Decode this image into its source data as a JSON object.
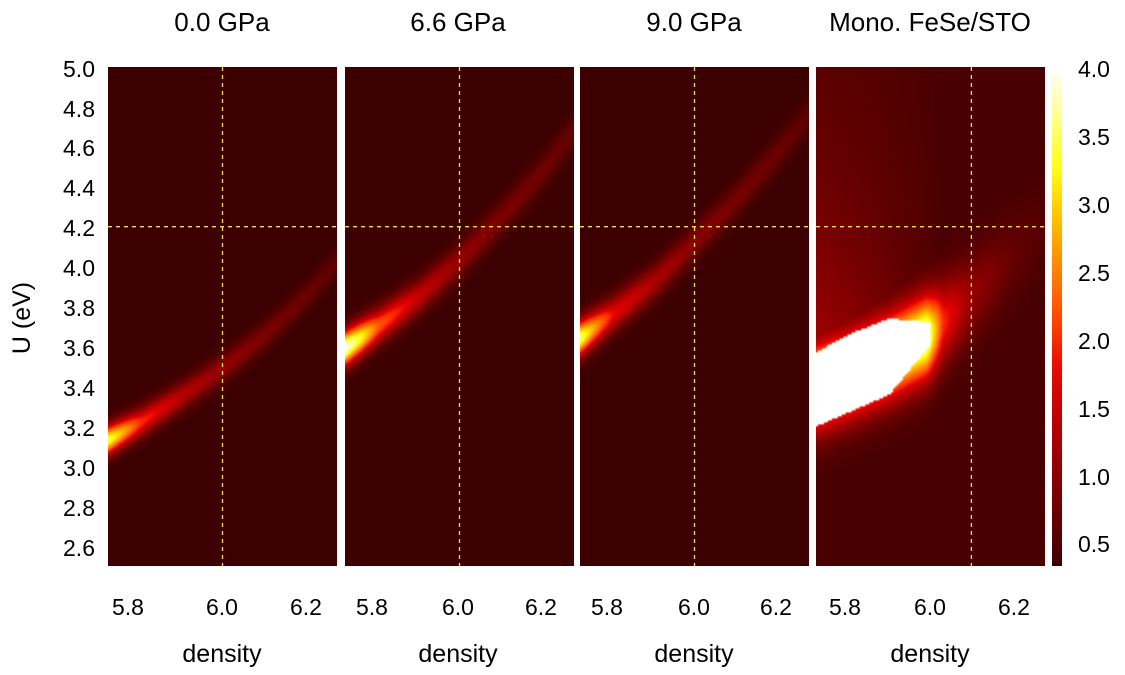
{
  "chart_data": {
    "type": "heatmap",
    "colormap": "black-red-yellow-white (gnuplot hot)",
    "ylabel": "U (eV)",
    "ylim": [
      2.5,
      5.0
    ],
    "yticks": [
      "5.0",
      "4.8",
      "4.6",
      "4.4",
      "4.2",
      "4.0",
      "3.8",
      "3.6",
      "3.4",
      "3.2",
      "3.0",
      "2.8",
      "2.6"
    ],
    "colorbar": {
      "range": [
        0.35,
        4.0
      ],
      "ticks": [
        "4.0",
        "3.5",
        "3.0",
        "2.5",
        "2.0",
        "1.5",
        "1.0",
        "0.5"
      ]
    },
    "reference_lines": {
      "u": 4.2,
      "color": "#f2e04a",
      "style": "dashed"
    },
    "panels": [
      {
        "title": "0.0 GPa",
        "xlabel": "density",
        "xlim": [
          5.72,
          6.28
        ],
        "xticks": [
          "5.8",
          "6.0",
          "6.2"
        ],
        "reference_density": 6.0,
        "ridge": [
          [
            5.72,
            3.13
          ],
          [
            5.8,
            3.22
          ],
          [
            5.9,
            3.35
          ],
          [
            6.0,
            3.49
          ],
          [
            6.1,
            3.65
          ],
          [
            6.2,
            3.84
          ],
          [
            6.28,
            4.02
          ]
        ],
        "ridge_peak": [
          [
            5.72,
            3.5
          ],
          [
            5.8,
            2.0
          ],
          [
            5.9,
            1.4
          ],
          [
            6.0,
            1.1
          ],
          [
            6.1,
            0.9
          ],
          [
            6.2,
            0.75
          ],
          [
            6.28,
            0.65
          ]
        ],
        "ridge_width": 0.07,
        "background": 0.35,
        "upper_halo": 0.0
      },
      {
        "title": "6.6 GPa",
        "xlabel": "density",
        "xlim": [
          5.72,
          6.28
        ],
        "xticks": [
          "5.8",
          "6.0",
          "6.2"
        ],
        "reference_density": 6.0,
        "ridge": [
          [
            5.72,
            3.59
          ],
          [
            5.8,
            3.7
          ],
          [
            5.9,
            3.85
          ],
          [
            6.0,
            4.03
          ],
          [
            6.1,
            4.24
          ],
          [
            6.2,
            4.47
          ],
          [
            6.28,
            4.68
          ]
        ],
        "ridge_peak": [
          [
            5.72,
            4.0
          ],
          [
            5.76,
            3.3
          ],
          [
            5.8,
            2.3
          ],
          [
            5.9,
            1.5
          ],
          [
            6.0,
            1.1
          ],
          [
            6.1,
            0.9
          ],
          [
            6.2,
            0.8
          ],
          [
            6.28,
            0.7
          ]
        ],
        "ridge_width": 0.085,
        "background": 0.35,
        "upper_halo": 0.0
      },
      {
        "title": "9.0 GPa",
        "xlabel": "density",
        "xlim": [
          5.72,
          6.28
        ],
        "xticks": [
          "5.8",
          "6.0",
          "6.2"
        ],
        "reference_density": 6.0,
        "ridge": [
          [
            5.72,
            3.64
          ],
          [
            5.8,
            3.76
          ],
          [
            5.9,
            3.92
          ],
          [
            6.0,
            4.12
          ],
          [
            6.1,
            4.33
          ],
          [
            6.2,
            4.56
          ],
          [
            6.28,
            4.76
          ]
        ],
        "ridge_peak": [
          [
            5.72,
            3.6
          ],
          [
            5.76,
            2.6
          ],
          [
            5.8,
            1.8
          ],
          [
            5.9,
            1.3
          ],
          [
            6.0,
            1.0
          ],
          [
            6.1,
            0.85
          ],
          [
            6.2,
            0.75
          ],
          [
            6.28,
            0.65
          ]
        ],
        "ridge_width": 0.085,
        "background": 0.35,
        "upper_halo": 0.0
      },
      {
        "title": "Mono. FeSe/STO",
        "xlabel": "density",
        "xlim": [
          5.72,
          6.28
        ],
        "xticks": [
          "5.8",
          "6.0",
          "6.2"
        ],
        "reference_density": 6.1,
        "ridge": [
          [
            5.72,
            3.4
          ],
          [
            5.8,
            3.46
          ],
          [
            5.9,
            3.55
          ],
          [
            6.0,
            3.66
          ],
          [
            6.1,
            3.85
          ],
          [
            6.2,
            4.05
          ],
          [
            6.28,
            4.2
          ]
        ],
        "ridge_peak": [
          [
            5.72,
            4.0
          ],
          [
            5.99,
            4.0
          ],
          [
            6.03,
            2.0
          ],
          [
            6.1,
            1.1
          ],
          [
            6.2,
            0.7
          ],
          [
            6.28,
            0.55
          ]
        ],
        "ridge_width": 0.2,
        "background": 0.45,
        "upper_halo": 1.0,
        "saturated_region": {
          "u_low": [
            [
              5.72,
              3.2
            ],
            [
              5.8,
              3.27
            ],
            [
              5.9,
              3.36
            ],
            [
              6.0,
              3.61
            ]
          ],
          "u_high": [
            [
              5.72,
              3.57
            ],
            [
              5.8,
              3.66
            ],
            [
              5.9,
              3.74
            ],
            [
              6.0,
              3.72
            ]
          ]
        }
      }
    ]
  }
}
